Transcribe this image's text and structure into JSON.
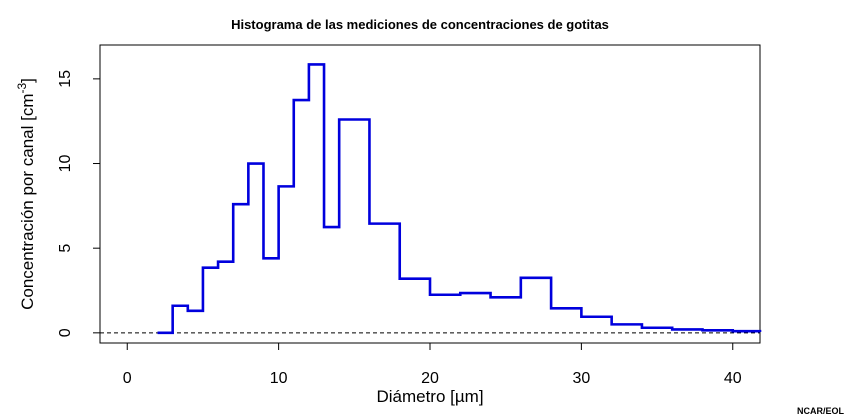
{
  "credit": "NCAR/EOL",
  "chart_data": {
    "type": "line",
    "step": true,
    "title": "Histograma de las mediciones de concentraciones de gotitas",
    "xlabel": "Diámetro [µm]",
    "ylabel_main": "Concentración por canal [cm",
    "ylabel_sup": "-3",
    "ylabel_close": "]",
    "xlim": [
      -1.8,
      41.8
    ],
    "ylim": [
      -0.6,
      17
    ],
    "x_ticks": [
      0,
      10,
      20,
      30,
      40
    ],
    "x_tick_labels": [
      "0",
      "10",
      "20",
      "30",
      "40"
    ],
    "y_ticks": [
      0,
      5,
      10,
      15
    ],
    "y_tick_labels": [
      "0",
      "5",
      "10",
      "15"
    ],
    "grid": false,
    "series_color": "#0000dd",
    "baseline": 0,
    "x": [
      2,
      3,
      4,
      5,
      6,
      7,
      8,
      9,
      10,
      11,
      12,
      13,
      14,
      16,
      18,
      20,
      22,
      24,
      26,
      28,
      30,
      32,
      34,
      36,
      38,
      40
    ],
    "values": [
      0,
      1.6,
      1.3,
      3.85,
      4.2,
      7.6,
      10.0,
      4.4,
      8.65,
      13.75,
      15.85,
      6.25,
      12.6,
      6.45,
      3.2,
      2.25,
      2.35,
      2.1,
      3.25,
      1.45,
      0.95,
      0.5,
      0.3,
      0.2,
      0.15,
      0.1
    ],
    "x_end": 41.8,
    "value_end": 0.05
  }
}
